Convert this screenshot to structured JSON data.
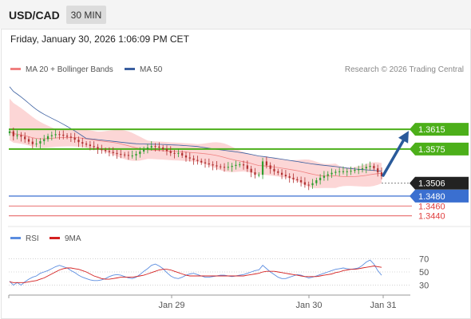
{
  "header": {
    "symbol": "USD/CAD",
    "timeframe": "30 MIN",
    "datetime": "Friday, January 30, 2026 1:06:09 PM CET"
  },
  "legend": {
    "ma20_label": "MA 20 + Bollinger Bands",
    "ma50_label": "MA 50",
    "copyright": "Research © 2026 Trading Central",
    "rsi_label": "RSI",
    "rsi_ma_label": "9MA"
  },
  "colors": {
    "candle_up": "#2e9e2e",
    "candle_down": "#b03030",
    "bollinger_fill": "#fcd6d6",
    "ma20_line": "#f08080",
    "ma50_line": "#3a5fa0",
    "resistance": "#4caf1a",
    "support": "#3a6fd0",
    "support_red": "#e04040",
    "current_price": "#222222",
    "arrow": "#2a5a9a",
    "rsi_line": "#5b8de0",
    "rsi_ma": "#d42020"
  },
  "chart_data": [
    {
      "type": "candlestick",
      "title": "USD/CAD",
      "x_tick_labels": [
        "Jan 29",
        "Jan 30",
        "Jan 31"
      ],
      "y_range": [
        1.3425,
        1.3715
      ],
      "levels": [
        {
          "value": 1.3615,
          "label": "1.3615",
          "kind": "resistance"
        },
        {
          "value": 1.3575,
          "label": "1.3575",
          "kind": "resistance"
        },
        {
          "value": 1.3506,
          "label": "1.3506",
          "kind": "current"
        },
        {
          "value": 1.348,
          "label": "1.3480",
          "kind": "support"
        },
        {
          "value": 1.346,
          "label": "1.3460",
          "kind": "support-minor"
        },
        {
          "value": 1.344,
          "label": "1.3440",
          "kind": "support-minor"
        }
      ],
      "close": [
        1.3611,
        1.3601,
        1.3603,
        1.36,
        1.3595,
        1.359,
        1.3585,
        1.3586,
        1.3591,
        1.3595,
        1.3601,
        1.3603,
        1.3605,
        1.3604,
        1.3602,
        1.36,
        1.3598,
        1.3594,
        1.3589,
        1.3586,
        1.3584,
        1.3581,
        1.3579,
        1.3575,
        1.3573,
        1.3571,
        1.3569,
        1.3567,
        1.3565,
        1.3564,
        1.3563,
        1.3562,
        1.3562,
        1.3565,
        1.357,
        1.3575,
        1.3578,
        1.3581,
        1.358,
        1.3578,
        1.3575,
        1.3571,
        1.3567,
        1.3566,
        1.3567,
        1.3562,
        1.3558,
        1.3556,
        1.3553,
        1.3551,
        1.3548,
        1.3546,
        1.3544,
        1.3542,
        1.354,
        1.3539,
        1.3538,
        1.3539,
        1.3541,
        1.3543,
        1.3544,
        1.3542,
        1.3535,
        1.3528,
        1.3523,
        1.3523,
        1.355,
        1.3542,
        1.3535,
        1.353,
        1.3527,
        1.3523,
        1.352,
        1.3517,
        1.3514,
        1.3512,
        1.3508,
        1.3503,
        1.3502,
        1.3506,
        1.3512,
        1.3517,
        1.3521,
        1.3524,
        1.3527,
        1.3529,
        1.353,
        1.353,
        1.353,
        1.3531,
        1.3533,
        1.3534,
        1.3536,
        1.3539,
        1.3541,
        1.3536,
        1.3528,
        1.352
      ]
    },
    {
      "type": "line",
      "title": "RSI",
      "series": [
        {
          "name": "RSI",
          "values": [
            36,
            30,
            34,
            30,
            35,
            39,
            42,
            44,
            48,
            50,
            52,
            55,
            58,
            60,
            58,
            56,
            52,
            49,
            45,
            42,
            40,
            38,
            37,
            37,
            38,
            40,
            43,
            45,
            46,
            45,
            43,
            41,
            40,
            42,
            46,
            51,
            55,
            60,
            62,
            59,
            55,
            49,
            44,
            41,
            40,
            42,
            45,
            47,
            48,
            46,
            44,
            42,
            42,
            43,
            44,
            45,
            45,
            44,
            43,
            44,
            45,
            46,
            48,
            50,
            52,
            53,
            60,
            55,
            50,
            46,
            42,
            40,
            40,
            42,
            44,
            46,
            45,
            43,
            41,
            42,
            44,
            46,
            48,
            50,
            52,
            54,
            55,
            56,
            55,
            54,
            55,
            56,
            60,
            65,
            68,
            62,
            52,
            45
          ]
        },
        {
          "name": "9MA",
          "values": [
            35,
            34,
            34,
            34,
            34,
            35,
            36,
            37,
            39,
            41,
            44,
            47,
            50,
            53,
            55,
            56,
            56,
            55,
            54,
            52,
            50,
            47,
            44,
            42,
            40,
            39,
            39,
            40,
            41,
            42,
            42,
            42,
            42,
            43,
            44,
            45,
            47,
            49,
            51,
            53,
            54,
            54,
            53,
            51,
            49,
            47,
            45,
            44,
            44,
            44,
            44,
            44,
            44,
            44,
            44,
            44,
            44,
            44,
            44,
            44,
            44,
            44,
            45,
            46,
            47,
            48,
            50,
            51,
            51,
            51,
            50,
            49,
            48,
            47,
            46,
            45,
            44,
            43,
            43,
            43,
            43,
            44,
            45,
            46,
            47,
            49,
            50,
            52,
            53,
            54,
            54,
            55,
            56,
            57,
            58,
            59,
            58,
            57
          ]
        }
      ],
      "y_range": [
        15,
        85
      ],
      "y_tick_labels": [
        "70",
        "50",
        "30"
      ],
      "x_tick_labels": [
        "Jan 29",
        "Jan 30",
        "Jan 31"
      ],
      "grid": true
    }
  ]
}
